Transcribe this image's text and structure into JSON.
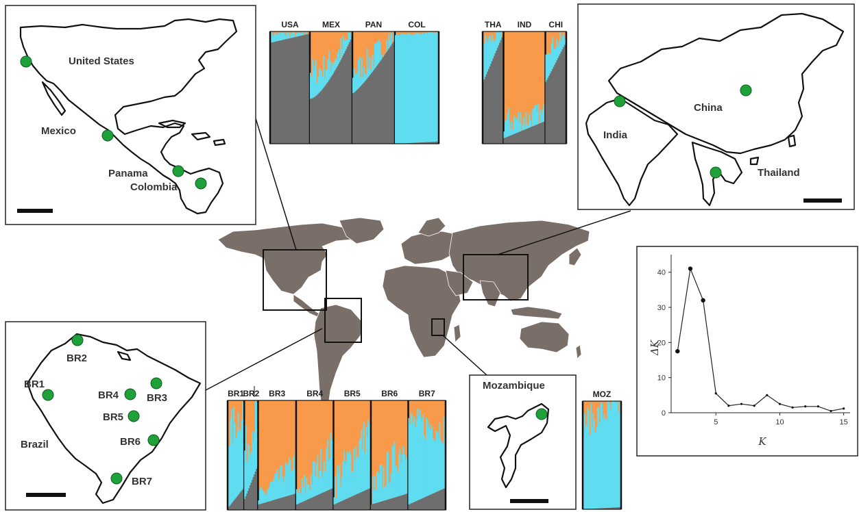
{
  "maps": {
    "americas": {
      "countries": [
        "United States",
        "Mexico",
        "Panama",
        "Colombia"
      ]
    },
    "asia": {
      "countries": [
        "China",
        "India",
        "Thailand"
      ]
    },
    "brazil": {
      "country": "Brazil",
      "sites": [
        "BR1",
        "BR2",
        "BR3",
        "BR4",
        "BR5",
        "BR6",
        "BR7"
      ]
    },
    "mozambique": {
      "country": "Mozambique"
    }
  },
  "structure_plots": {
    "americas": [
      "USA",
      "MEX",
      "PAN",
      "COL"
    ],
    "asia": [
      "THA",
      "IND",
      "CHI"
    ],
    "brazil": [
      "BR1",
      "BR2",
      "BR3",
      "BR4",
      "BR5",
      "BR6",
      "BR7"
    ],
    "mozambique": [
      "MOZ"
    ],
    "colors": {
      "cluster1": "#6e6e6e",
      "cluster2": "#5fdcf0",
      "cluster3": "#f89a4a"
    }
  },
  "chart_data": {
    "type": "line",
    "title": "",
    "xlabel": "K",
    "ylabel": "ΔK",
    "x": [
      2,
      3,
      4,
      5,
      6,
      7,
      8,
      9,
      10,
      11,
      12,
      13,
      14,
      15
    ],
    "values": [
      17.5,
      41,
      32,
      5.5,
      2,
      2.5,
      2,
      5,
      2.5,
      1.5,
      1.8,
      1.8,
      0.5,
      1.2
    ],
    "xlim": [
      1.5,
      15.5
    ],
    "ylim": [
      0,
      45
    ],
    "xticks": [
      "5",
      "10",
      "15"
    ],
    "yticks": [
      "0",
      "10",
      "20",
      "30",
      "40"
    ],
    "grid": false
  }
}
